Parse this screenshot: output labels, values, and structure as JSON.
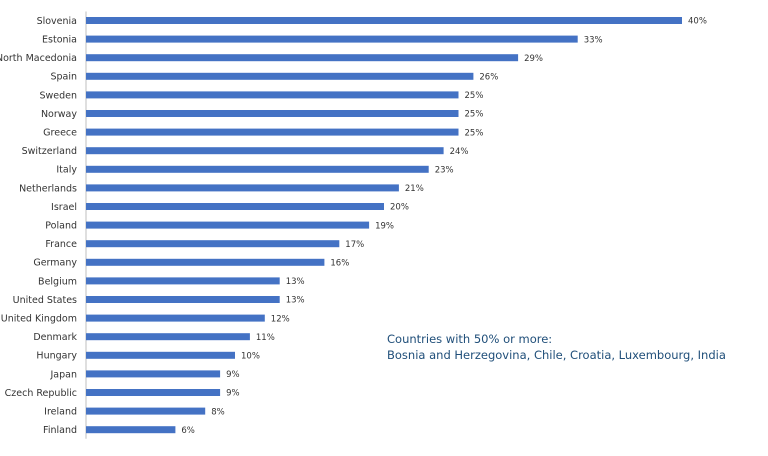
{
  "chart_data": {
    "type": "bar",
    "orientation": "horizontal",
    "categories": [
      "Slovenia",
      "Estonia",
      "North Macedonia",
      "Spain",
      "Sweden",
      "Norway",
      "Greece",
      "Switzerland",
      "Italy",
      "Netherlands",
      "Israel",
      "Poland",
      "France",
      "Germany",
      "Belgium",
      "United States",
      "United Kingdom",
      "Denmark",
      "Hungary",
      "Japan",
      "Czech Republic",
      "Ireland",
      "Finland"
    ],
    "values": [
      40,
      33,
      29,
      26,
      25,
      25,
      25,
      24,
      23,
      21,
      20,
      19,
      17,
      16,
      13,
      13,
      12,
      11,
      10,
      9,
      9,
      8,
      6
    ],
    "value_labels": [
      "40%",
      "33%",
      "29%",
      "26%",
      "25%",
      "25%",
      "25%",
      "24%",
      "23%",
      "21%",
      "20%",
      "19%",
      "17%",
      "16%",
      "13%",
      "13%",
      "12%",
      "11%",
      "10%",
      "9%",
      "9%",
      "8%",
      "6%"
    ],
    "xlim": [
      0,
      40
    ],
    "grid": false,
    "bar_color": "#4472c4",
    "axis_color": "#bfbfbf",
    "annotation": {
      "heading": "Countries with 50% or more:",
      "text": "Bosnia and Herzegovina, Chile, Croatia, Luxembourg, India",
      "color": "#1f4e79"
    }
  }
}
